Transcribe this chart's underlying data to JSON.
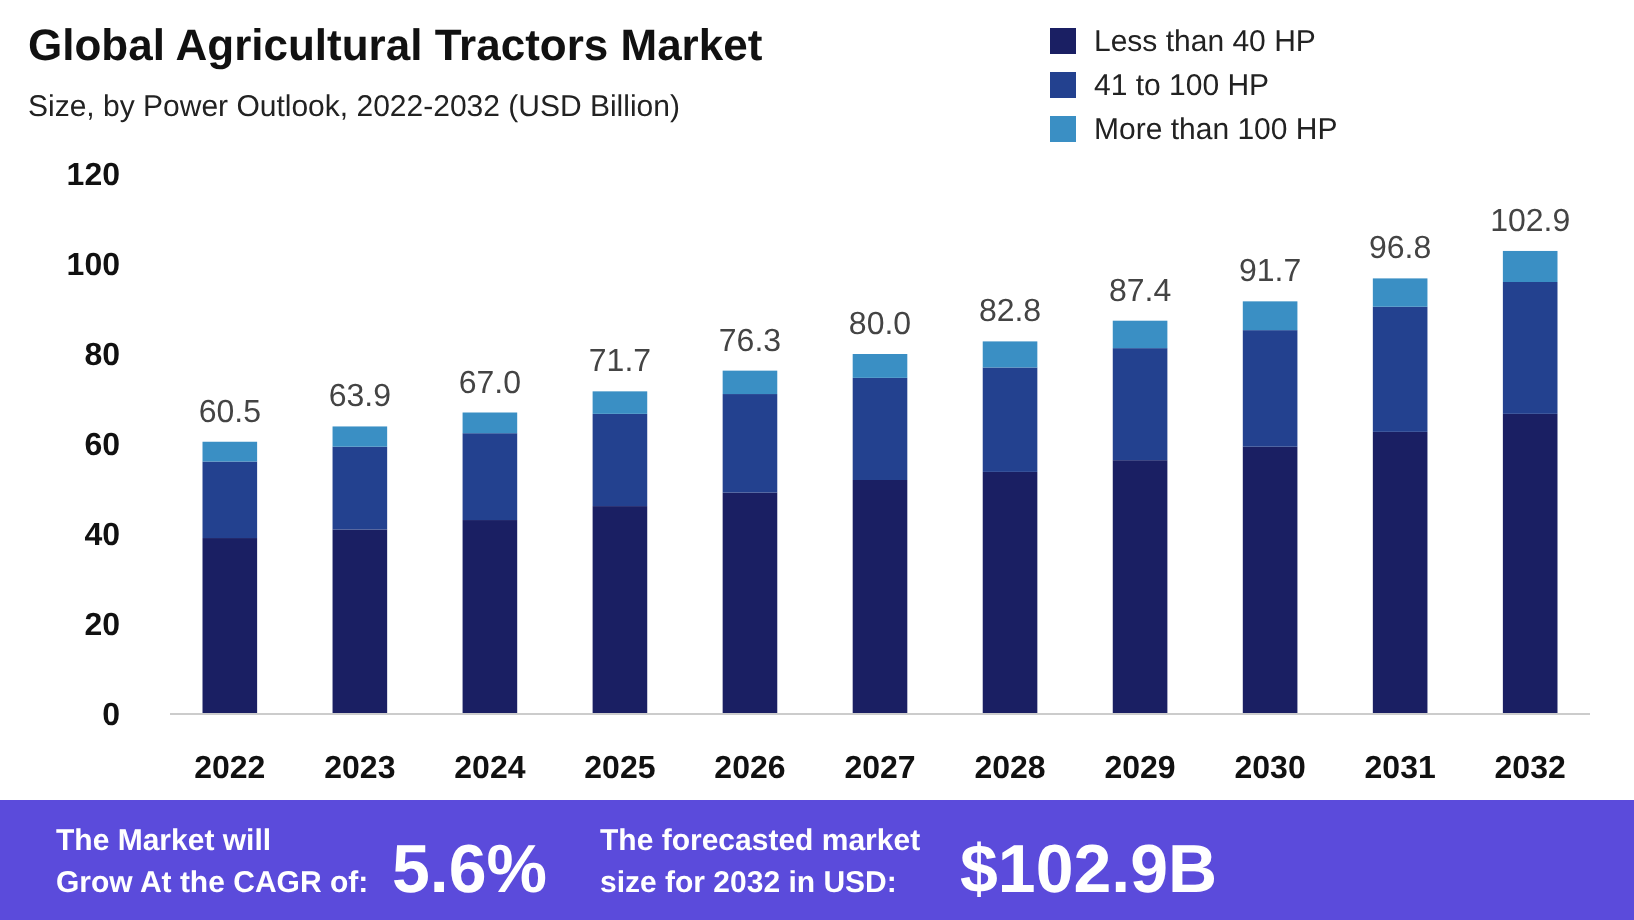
{
  "chart_data": {
    "type": "bar",
    "stacked": true,
    "title": "Global Agricultural Tractors Market",
    "subtitle": "Size, by Power Outlook, 2022-2032 (USD Billion)",
    "categories": [
      "2022",
      "2023",
      "2024",
      "2025",
      "2026",
      "2027",
      "2028",
      "2029",
      "2030",
      "2031",
      "2032"
    ],
    "series": [
      {
        "name": "Less than 40 HP",
        "color": "#1a1f63",
        "values": [
          39.1,
          41.0,
          43.1,
          46.2,
          49.2,
          52.0,
          53.8,
          56.4,
          59.4,
          62.7,
          66.7
        ]
      },
      {
        "name": "41 to 100 HP",
        "color": "#23418f",
        "values": [
          17.0,
          18.4,
          19.3,
          20.5,
          21.9,
          22.7,
          23.2,
          24.9,
          25.9,
          27.8,
          29.3
        ]
      },
      {
        "name": "More than 100 HP",
        "color": "#3a8fc4",
        "values": [
          4.4,
          4.5,
          4.6,
          5.0,
          5.2,
          5.3,
          5.8,
          6.1,
          6.4,
          6.3,
          6.9
        ]
      }
    ],
    "totals": [
      "60.5",
      "63.9",
      "67.0",
      "71.7",
      "76.3",
      "80.0",
      "82.8",
      "87.4",
      "91.7",
      "96.8",
      "102.9"
    ],
    "ylim": [
      0,
      120
    ],
    "yticks": [
      0,
      20,
      40,
      60,
      80,
      100,
      120
    ],
    "grid": false,
    "legend": "top right",
    "annotations": [
      "The Market will Grow At the CAGR of:",
      "5.6%",
      "The forecasted market size for 2032 in USD:",
      "$102.9B"
    ]
  }
}
